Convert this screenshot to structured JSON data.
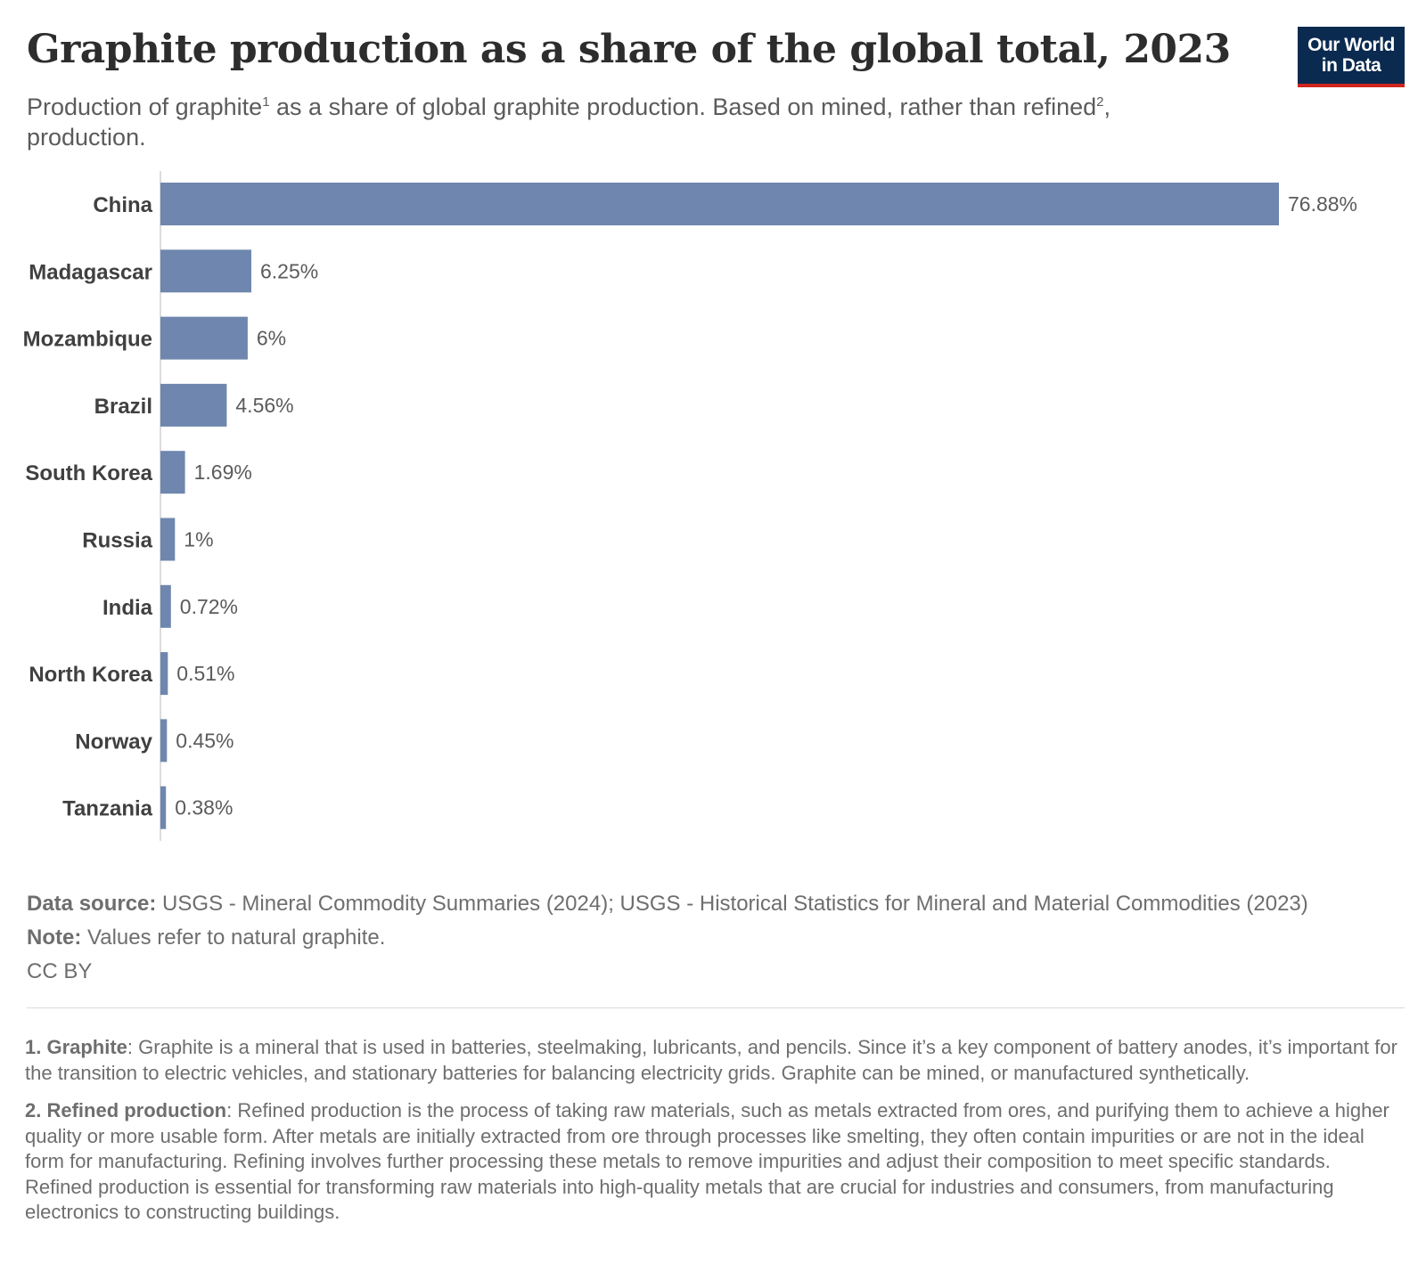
{
  "header": {
    "title": "Graphite production as a share of the global total, 2023",
    "subtitle_part1": "Production of graphite",
    "subtitle_sup1": "1",
    "subtitle_part2": " as a share of global graphite production. Based on mined, rather than refined",
    "subtitle_sup2": "2",
    "subtitle_part3": ", production.",
    "logo_line1": "Our World",
    "logo_line2": "in Data"
  },
  "colors": {
    "bar": "#6f87ae",
    "logo_bg": "#0a2a4f",
    "logo_accent": "#ce261e"
  },
  "chart_data": {
    "type": "bar",
    "orientation": "horizontal",
    "categories": [
      "China",
      "Madagascar",
      "Mozambique",
      "Brazil",
      "South Korea",
      "Russia",
      "India",
      "North Korea",
      "Norway",
      "Tanzania"
    ],
    "values": [
      76.88,
      6.25,
      6,
      4.56,
      1.69,
      1,
      0.72,
      0.51,
      0.45,
      0.38
    ],
    "value_labels": [
      "76.88%",
      "6.25%",
      "6%",
      "4.56%",
      "1.69%",
      "1%",
      "0.72%",
      "0.51%",
      "0.45%",
      "0.38%"
    ],
    "unit": "%",
    "xlim": [
      0,
      76.88
    ],
    "grid": false,
    "legend": "none"
  },
  "footer": {
    "source_label": "Data source:",
    "source_text": " USGS - Mineral Commodity Summaries (2024); USGS - Historical Statistics for Mineral and Material Commodities (2023)",
    "note_label": "Note:",
    "note_text": " Values refer to natural graphite.",
    "license": "CC BY"
  },
  "notes": {
    "n1_label": "1. Graphite",
    "n1_text": ": Graphite is a mineral that is used in batteries, steelmaking, lubricants, and pencils. Since it’s a key component of battery anodes, it’s important for the transition to electric vehicles, and stationary batteries for balancing electricity grids. Graphite can be mined, or manufactured synthetically.",
    "n2_label": "2. Refined production",
    "n2_text": ": Refined production is the process of taking raw materials, such as metals extracted from ores, and purifying them to achieve a higher quality or more usable form. After metals are initially extracted from ore through processes like smelting, they often contain impurities or are not in the ideal form for manufacturing. Refining involves further processing these metals to remove impurities and adjust their composition to meet specific standards. Refined production is essential for transforming raw materials into high-quality metals that are crucial for industries and consumers, from manufacturing electronics to constructing buildings."
  }
}
